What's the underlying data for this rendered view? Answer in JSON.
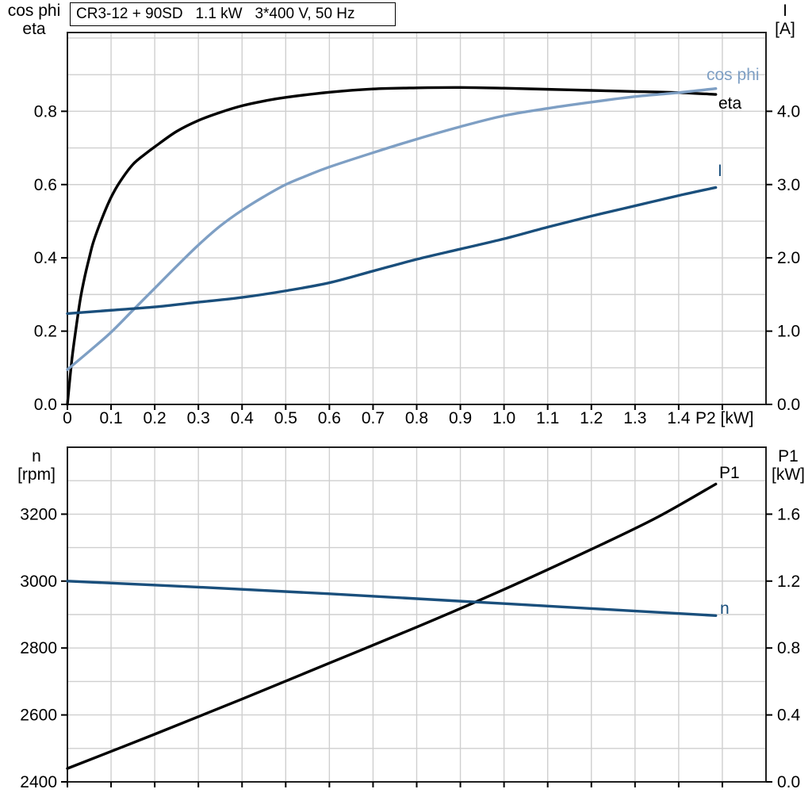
{
  "title_box": "CR3-12 + 90SD   1.1 kW   3*400 V, 50 Hz",
  "colors": {
    "black": "#000000",
    "light_blue": "#7e9fc4",
    "dark_blue": "#1a4f7c",
    "grid": "#cfcfcf",
    "border": "#1f1f1f"
  },
  "chart_data": [
    {
      "id": "top-performance-chart",
      "type": "line",
      "title": "CR3-12 + 90SD   1.1 kW   3*400 V, 50 Hz",
      "x_axis": {
        "label": "P2 [kW]",
        "min": 0,
        "max": 1.6,
        "grid_step": 0.1,
        "tick_step": 0.1,
        "tick_labels": [
          "0",
          "0.1",
          "0.2",
          "0.3",
          "0.4",
          "0.5",
          "0.6",
          "0.7",
          "0.8",
          "0.9",
          "1.0",
          "1.1",
          "1.2",
          "1.3",
          "1.4"
        ]
      },
      "y_left": {
        "header_lines": [
          "cos phi",
          "eta"
        ],
        "min": 0,
        "max": 1.015,
        "grid_step": 0.1,
        "ticks": [
          0,
          0.2,
          0.4,
          0.6,
          0.8
        ],
        "tick_labels": [
          "0.0",
          "0.2",
          "0.4",
          "0.6",
          "0.8"
        ]
      },
      "y_right": {
        "header_lines": [
          "I",
          "[A]"
        ],
        "min": 0,
        "max": 5.075,
        "grid_step": 0.5,
        "ticks": [
          0,
          1,
          2,
          3,
          4
        ],
        "tick_labels": [
          "0.0",
          "1.0",
          "2.0",
          "3.0",
          "4.0"
        ]
      },
      "series": [
        {
          "name": "eta",
          "label": "eta",
          "color": "#000000",
          "axis": "left",
          "width": 3.4,
          "points": [
            [
              0,
              0
            ],
            [
              0.01,
              0.12
            ],
            [
              0.02,
              0.21
            ],
            [
              0.03,
              0.29
            ],
            [
              0.04,
              0.35
            ],
            [
              0.05,
              0.4
            ],
            [
              0.06,
              0.445
            ],
            [
              0.08,
              0.51
            ],
            [
              0.1,
              0.565
            ],
            [
              0.12,
              0.607
            ],
            [
              0.15,
              0.655
            ],
            [
              0.18,
              0.685
            ],
            [
              0.2,
              0.703
            ],
            [
              0.25,
              0.745
            ],
            [
              0.3,
              0.775
            ],
            [
              0.35,
              0.797
            ],
            [
              0.4,
              0.815
            ],
            [
              0.45,
              0.828
            ],
            [
              0.5,
              0.838
            ],
            [
              0.6,
              0.852
            ],
            [
              0.7,
              0.861
            ],
            [
              0.8,
              0.864
            ],
            [
              0.9,
              0.865
            ],
            [
              1.0,
              0.863
            ],
            [
              1.1,
              0.86
            ],
            [
              1.2,
              0.857
            ],
            [
              1.3,
              0.854
            ],
            [
              1.4,
              0.851
            ],
            [
              1.485,
              0.846
            ]
          ]
        },
        {
          "name": "cos_phi",
          "label": "cos phi",
          "color": "#7e9fc4",
          "axis": "left",
          "width": 3.4,
          "points": [
            [
              0,
              0.095
            ],
            [
              0.05,
              0.145
            ],
            [
              0.1,
              0.197
            ],
            [
              0.15,
              0.257
            ],
            [
              0.2,
              0.317
            ],
            [
              0.25,
              0.377
            ],
            [
              0.3,
              0.435
            ],
            [
              0.35,
              0.487
            ],
            [
              0.4,
              0.53
            ],
            [
              0.45,
              0.567
            ],
            [
              0.5,
              0.6
            ],
            [
              0.55,
              0.625
            ],
            [
              0.6,
              0.648
            ],
            [
              0.7,
              0.687
            ],
            [
              0.8,
              0.724
            ],
            [
              0.9,
              0.758
            ],
            [
              1.0,
              0.788
            ],
            [
              1.1,
              0.808
            ],
            [
              1.2,
              0.825
            ],
            [
              1.3,
              0.84
            ],
            [
              1.4,
              0.851
            ],
            [
              1.485,
              0.862
            ]
          ]
        },
        {
          "name": "I",
          "label": "I",
          "color": "#1a4f7c",
          "axis": "right",
          "width": 3.4,
          "points": [
            [
              0,
              1.24
            ],
            [
              0.1,
              1.285
            ],
            [
              0.2,
              1.33
            ],
            [
              0.3,
              1.395
            ],
            [
              0.4,
              1.46
            ],
            [
              0.5,
              1.55
            ],
            [
              0.6,
              1.66
            ],
            [
              0.7,
              1.82
            ],
            [
              0.8,
              1.98
            ],
            [
              0.9,
              2.12
            ],
            [
              1.0,
              2.26
            ],
            [
              1.1,
              2.42
            ],
            [
              1.2,
              2.57
            ],
            [
              1.3,
              2.71
            ],
            [
              1.4,
              2.85
            ],
            [
              1.485,
              2.96
            ]
          ]
        }
      ]
    },
    {
      "id": "bottom-performance-chart",
      "type": "line",
      "title": "",
      "x_axis": {
        "label": "",
        "min": 0,
        "max": 1.6,
        "grid_step": 0.1,
        "tick_step": 0.1,
        "tick_labels": []
      },
      "y_left": {
        "header_lines": [
          "n",
          "[rpm]"
        ],
        "min": 2400,
        "max": 3400,
        "grid_step": 100,
        "ticks": [
          2400,
          2600,
          2800,
          3000,
          3200
        ],
        "tick_labels": [
          "2400",
          "2600",
          "2800",
          "3000",
          "3200"
        ]
      },
      "y_right": {
        "header_lines": [
          "P1",
          "[kW]"
        ],
        "min": 0,
        "max": 2.0,
        "grid_step": 0.2,
        "ticks": [
          0,
          0.4,
          0.8,
          1.2,
          1.6
        ],
        "tick_labels": [
          "0.0",
          "0.4",
          "0.8",
          "1.2",
          "1.6"
        ]
      },
      "series": [
        {
          "name": "P1",
          "label": "P1",
          "color": "#000000",
          "axis": "right",
          "width": 3.4,
          "points": [
            [
              0,
              0.08
            ],
            [
              0.2,
              0.285
            ],
            [
              0.4,
              0.495
            ],
            [
              0.6,
              0.71
            ],
            [
              0.8,
              0.925
            ],
            [
              1.0,
              1.15
            ],
            [
              1.2,
              1.39
            ],
            [
              1.35,
              1.58
            ],
            [
              1.485,
              1.78
            ]
          ]
        },
        {
          "name": "n",
          "label": "n",
          "color": "#1a4f7c",
          "axis": "left",
          "width": 3.4,
          "points": [
            [
              0,
              3000
            ],
            [
              0.3,
              2982
            ],
            [
              0.6,
              2962
            ],
            [
              0.9,
              2940
            ],
            [
              1.2,
              2918
            ],
            [
              1.485,
              2897
            ]
          ]
        }
      ]
    }
  ]
}
